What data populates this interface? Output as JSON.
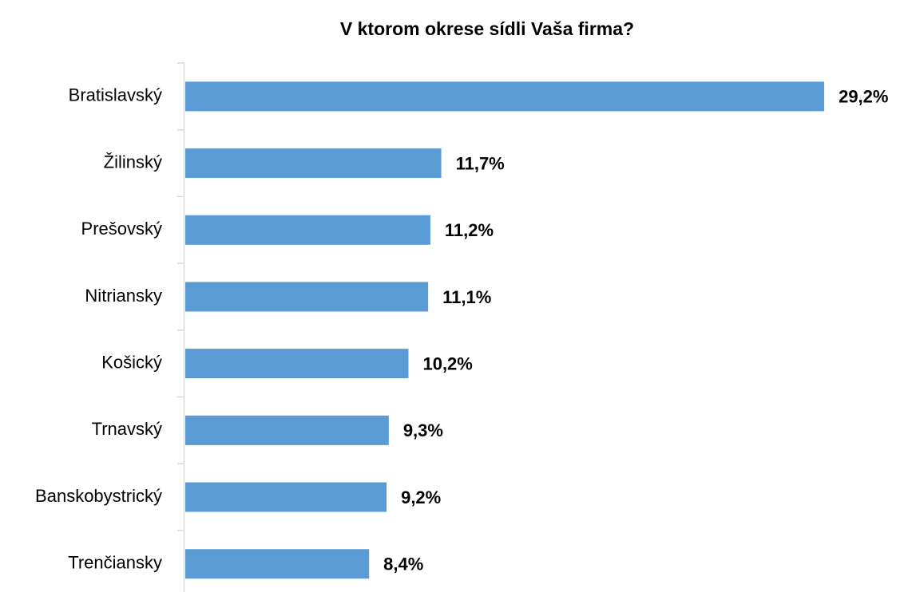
{
  "chart_data": {
    "type": "bar",
    "orientation": "horizontal",
    "title": "V ktorom okrese sídli Vaša firma?",
    "categories": [
      "Bratislavský",
      "Žilinský",
      "Prešovský",
      "Nitriansky",
      "Košický",
      "Trnavský",
      "Banskobystrický",
      "Trenčiansky"
    ],
    "values": [
      29.2,
      11.7,
      11.2,
      11.1,
      10.2,
      9.3,
      9.2,
      8.4
    ],
    "value_labels": [
      "29,2%",
      "11,7%",
      "11,2%",
      "11,1%",
      "10,2%",
      "9,3%",
      "9,2%",
      "8,4%"
    ],
    "color": "#5b9bd5"
  }
}
